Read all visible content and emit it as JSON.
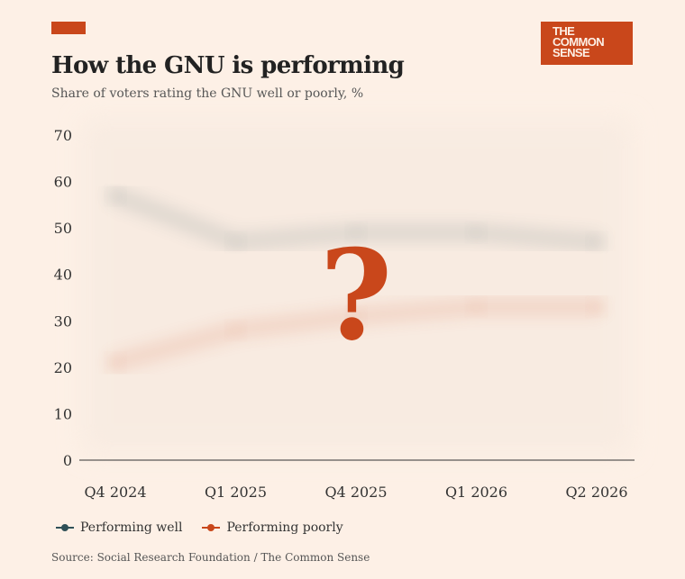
{
  "header": {
    "title": "How the GNU is performing",
    "subtitle": "Share of voters rating the GNU well or poorly, %",
    "logo_lines": [
      "THE",
      "COMMON",
      "SENSE"
    ]
  },
  "colors": {
    "accent": "#c9471b",
    "background": "#fdf0e6",
    "well": "#2f5057",
    "poorly": "#c9471b"
  },
  "overlay": {
    "symbol": "?",
    "note": "data lines obscured"
  },
  "chart_data": {
    "type": "line",
    "title": "How the GNU is performing",
    "subtitle": "Share of voters rating the GNU well or poorly, %",
    "categories": [
      "Q4 2024",
      "Q1 2025",
      "Q4 2025",
      "Q1 2026",
      "Q2 2026"
    ],
    "ylim": [
      0,
      70
    ],
    "yticks": [
      0,
      10,
      20,
      30,
      40,
      50,
      60,
      70
    ],
    "grid": false,
    "series": [
      {
        "name": "Performing well",
        "color": "#2f5057",
        "values": [
          57,
          47,
          49,
          49,
          47
        ]
      },
      {
        "name": "Performing poorly",
        "color": "#c9471b",
        "values": [
          21,
          28,
          31,
          33,
          33
        ]
      }
    ],
    "obscured": true,
    "legend": "bottom-left"
  },
  "footer": {
    "source": "Source: Social Research Foundation / The Common Sense"
  }
}
